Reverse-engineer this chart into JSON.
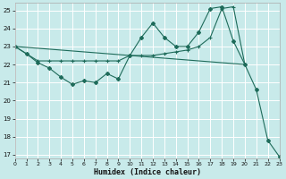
{
  "bg_color": "#c8eaea",
  "grid_color": "#ffffff",
  "line_color": "#1e6b5a",
  "xlabel": "Humidex (Indice chaleur)",
  "xlim": [
    0,
    23
  ],
  "ylim": [
    16.8,
    25.4
  ],
  "yticks": [
    17,
    18,
    19,
    20,
    21,
    22,
    23,
    24,
    25
  ],
  "xticks": [
    0,
    1,
    2,
    3,
    4,
    5,
    6,
    7,
    8,
    9,
    10,
    11,
    12,
    13,
    14,
    15,
    16,
    17,
    18,
    19,
    20,
    21,
    22,
    23
  ],
  "line1_x": [
    0,
    1,
    2,
    3,
    4,
    5,
    6,
    7,
    8,
    9,
    10,
    11,
    12,
    13,
    14,
    15,
    16,
    17,
    18,
    19,
    20,
    21,
    22,
    23
  ],
  "line1_y": [
    23.0,
    22.6,
    22.1,
    21.8,
    21.3,
    20.9,
    21.1,
    21.0,
    21.5,
    21.2,
    22.5,
    23.5,
    24.3,
    23.5,
    23.0,
    23.0,
    23.8,
    25.1,
    25.2,
    23.3,
    22.0,
    20.6,
    17.8,
    16.9
  ],
  "line2_x": [
    0,
    1,
    2,
    3,
    4,
    5,
    6,
    7,
    8,
    9,
    10,
    11,
    12,
    13,
    14,
    15,
    16,
    17,
    18,
    19,
    20
  ],
  "line2_y": [
    23.0,
    22.6,
    22.2,
    22.2,
    22.2,
    22.2,
    22.2,
    22.2,
    22.2,
    22.2,
    22.5,
    22.5,
    22.5,
    22.6,
    22.7,
    22.8,
    23.0,
    23.5,
    25.1,
    25.2,
    22.0
  ],
  "line3_x": [
    0,
    20
  ],
  "line3_y": [
    23.0,
    22.0
  ]
}
